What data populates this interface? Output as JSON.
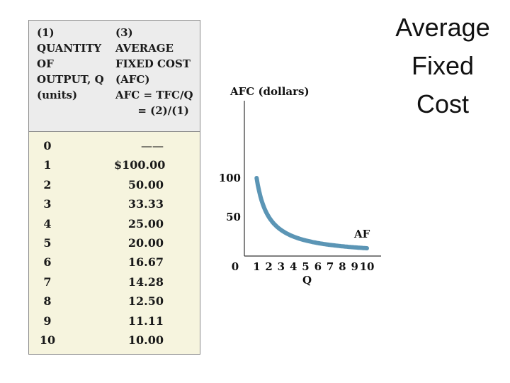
{
  "slide_title": [
    "Average",
    "Fixed",
    "Cost"
  ],
  "table": {
    "col1_header": "(1)\nQUANTITY\nOF\nOUTPUT, Q\n(units)",
    "col3_header": "(3)\nAVERAGE\nFIXED COST\n(AFC)\nAFC = TFC/Q\n      = (2)/(1)",
    "rows": [
      {
        "q": "0",
        "afc": "——"
      },
      {
        "q": "1",
        "afc": "$100.00"
      },
      {
        "q": "2",
        "afc": "50.00"
      },
      {
        "q": "3",
        "afc": "33.33"
      },
      {
        "q": "4",
        "afc": "25.00"
      },
      {
        "q": "5",
        "afc": "20.00"
      },
      {
        "q": "6",
        "afc": "16.67"
      },
      {
        "q": "7",
        "afc": "14.28"
      },
      {
        "q": "8",
        "afc": "12.50"
      },
      {
        "q": "9",
        "afc": "11.11"
      },
      {
        "q": "10",
        "afc": "10.00"
      }
    ]
  },
  "chart_data": {
    "type": "line",
    "ylabel": "AFC (dollars)",
    "xlabel": "Q",
    "series": [
      {
        "name": "AF",
        "x": [
          1,
          2,
          3,
          4,
          5,
          6,
          7,
          8,
          9,
          10
        ],
        "values": [
          100,
          50,
          33.33,
          25,
          20,
          16.67,
          14.28,
          12.5,
          11.11,
          10
        ]
      }
    ],
    "x_ticks": [
      "0",
      "1",
      "2",
      "3",
      "4",
      "5",
      "6",
      "7",
      "8",
      "9",
      "10"
    ],
    "y_ticks": [
      "100",
      "50"
    ],
    "line_color": "#5b95b5"
  }
}
